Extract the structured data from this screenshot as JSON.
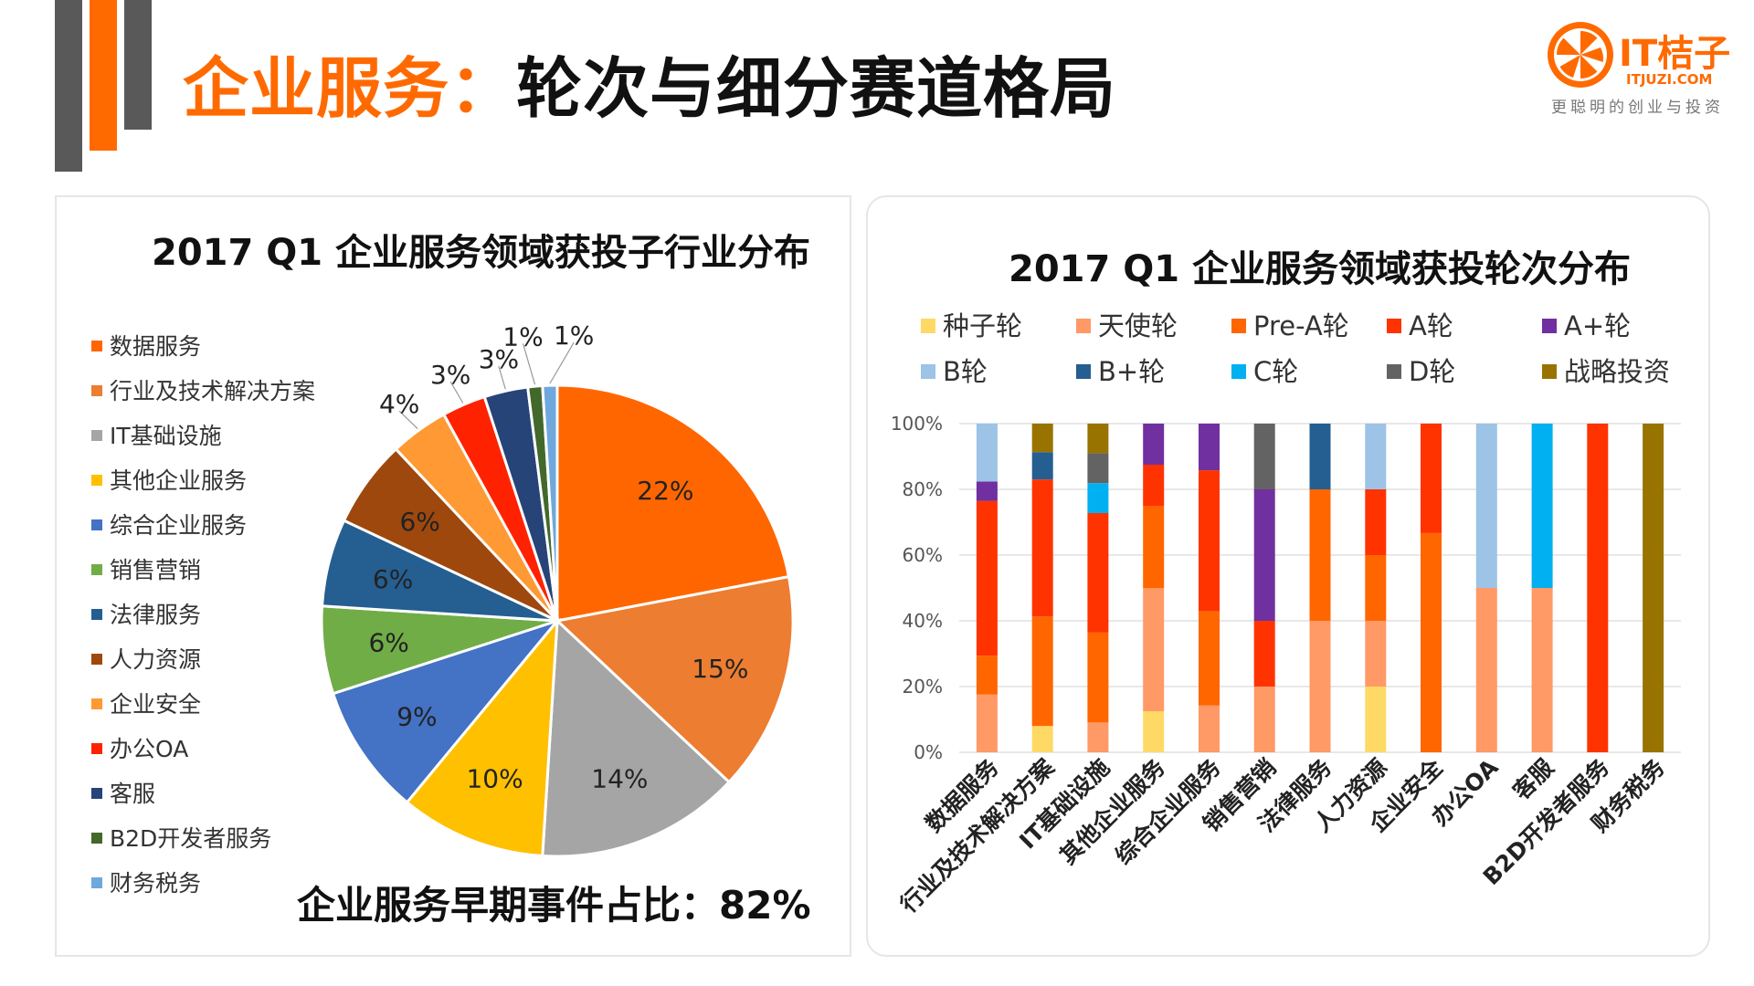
{
  "header": {
    "title_accent": "企业服务：",
    "title_rest": "轮次与细分赛道格局"
  },
  "logo": {
    "brand": "IT桔子",
    "url_text": "ITJUZI.COM",
    "slogan": "更聪明的创业与投资",
    "color": "#ff6a00"
  },
  "colors": {
    "accent": "#ff6a00",
    "bar_dark": "#595959"
  },
  "chart_data": [
    {
      "type": "pie",
      "title": "2017 Q1 企业服务领域获投子行业分布",
      "legend_position": "left",
      "slices": [
        {
          "label": "数据服务",
          "value": 22,
          "display": "22%",
          "color": "#ff6600"
        },
        {
          "label": "行业及技术解决方案",
          "value": 15,
          "display": "15%",
          "color": "#ed7d31"
        },
        {
          "label": "IT基础设施",
          "value": 14,
          "display": "14%",
          "color": "#a5a5a5"
        },
        {
          "label": "其他企业服务",
          "value": 10,
          "display": "10%",
          "color": "#ffc000"
        },
        {
          "label": "综合企业服务",
          "value": 9,
          "display": "9%",
          "color": "#4472c4"
        },
        {
          "label": "销售营销",
          "value": 6,
          "display": "6%",
          "color": "#70ad47"
        },
        {
          "label": "法律服务",
          "value": 6,
          "display": "6%",
          "color": "#255e91"
        },
        {
          "label": "人力资源",
          "value": 6,
          "display": "6%",
          "color": "#9e480e"
        },
        {
          "label": "企业安全",
          "value": 4,
          "display": "4%",
          "color": "#ff9933"
        },
        {
          "label": "办公OA",
          "value": 3,
          "display": "3%",
          "color": "#ff2200"
        },
        {
          "label": "客服",
          "value": 3,
          "display": "3%",
          "color": "#264478"
        },
        {
          "label": "B2D开发者服务",
          "value": 1,
          "display": "1%",
          "color": "#43682b"
        },
        {
          "label": "财务税务",
          "value": 1,
          "display": "1%",
          "color": "#6fa8dc"
        }
      ],
      "footer_stat": "企业服务早期事件占比：82%"
    },
    {
      "type": "bar",
      "stacked": true,
      "normalized": true,
      "title": "2017 Q1 企业服务领域获投轮次分布",
      "legend_position": "top",
      "ylim": [
        0,
        100
      ],
      "y_ticks": [
        "0%",
        "20%",
        "40%",
        "60%",
        "80%",
        "100%"
      ],
      "grid": true,
      "categories": [
        "数据服务",
        "行业及技术解决方案",
        "IT基础设施",
        "其他企业服务",
        "综合企业服务",
        "销售营销",
        "法律服务",
        "人力资源",
        "企业安全",
        "办公OA",
        "客服",
        "B2D开发者服务",
        "财务税务"
      ],
      "series": [
        {
          "name": "种子轮",
          "color": "#ffd966",
          "values": [
            0,
            8,
            0,
            12.5,
            0,
            0,
            0,
            20,
            0,
            0,
            0,
            0,
            0
          ]
        },
        {
          "name": "天使轮",
          "color": "#ff9966",
          "values": [
            17.6,
            0,
            9.1,
            37.5,
            14.3,
            20,
            40,
            20,
            0,
            50,
            50,
            0,
            0
          ]
        },
        {
          "name": "Pre-A轮",
          "color": "#ff6600",
          "values": [
            11.8,
            33.3,
            27.3,
            25,
            28.6,
            0,
            40,
            20,
            66.7,
            0,
            0,
            0,
            0
          ]
        },
        {
          "name": "A轮",
          "color": "#ff3300",
          "values": [
            47.1,
            41.7,
            36.4,
            12.5,
            42.9,
            20,
            0,
            20,
            33.3,
            0,
            0,
            100,
            0
          ]
        },
        {
          "name": "A+轮",
          "color": "#7030a0",
          "values": [
            5.9,
            0,
            0,
            12.5,
            14.2,
            40,
            0,
            0,
            0,
            0,
            0,
            0,
            0
          ]
        },
        {
          "name": "B轮",
          "color": "#9dc3e6",
          "values": [
            17.6,
            0,
            0,
            0,
            0,
            0,
            0,
            20,
            0,
            50,
            0,
            0,
            0
          ]
        },
        {
          "name": "B+轮",
          "color": "#255e91",
          "values": [
            0,
            8.3,
            0,
            0,
            0,
            0,
            20,
            0,
            0,
            0,
            0,
            0,
            0
          ]
        },
        {
          "name": "C轮",
          "color": "#00b0f0",
          "values": [
            0,
            0,
            9.1,
            0,
            0,
            0,
            0,
            0,
            0,
            0,
            50,
            0,
            0
          ]
        },
        {
          "name": "D轮",
          "color": "#636363",
          "values": [
            0,
            0,
            9.1,
            0,
            0,
            20,
            0,
            0,
            0,
            0,
            0,
            0,
            0
          ]
        },
        {
          "name": "战略投资",
          "color": "#997300",
          "values": [
            0,
            8.7,
            9.0,
            0,
            0,
            0,
            0,
            0,
            0,
            0,
            0,
            0,
            100
          ]
        }
      ]
    }
  ]
}
